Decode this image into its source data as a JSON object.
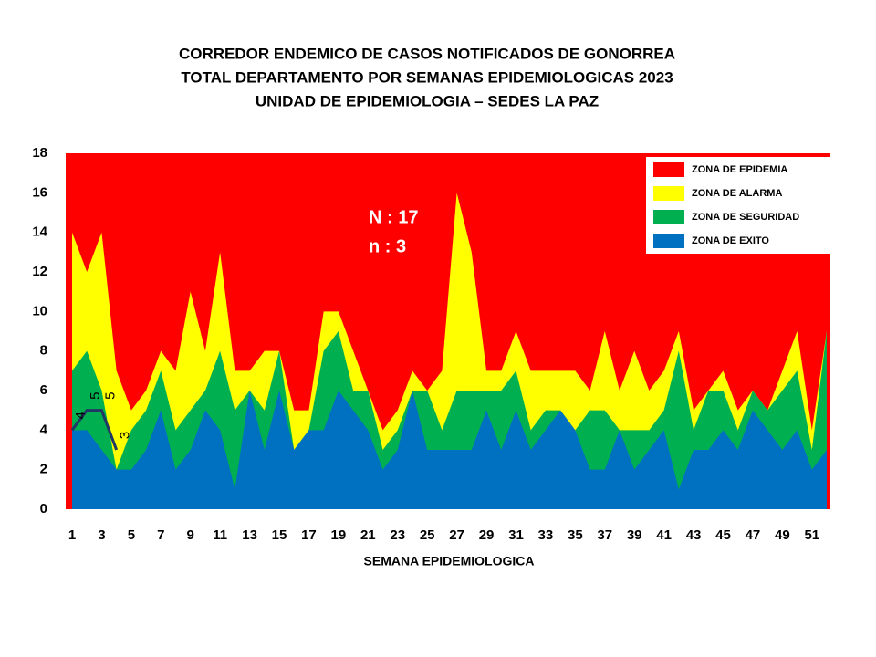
{
  "chart_data": {
    "type": "stacked_area",
    "title": [
      "CORREDOR ENDEMICO  DE CASOS NOTIFICADOS  DE GONORREA",
      "TOTAL DEPARTAMENTO  POR SEMANAS EPIDEMIOLOGICAS  2023",
      "UNIDAD  DE EPIDEMIOLOGIA  – SEDES LA PAZ"
    ],
    "x_label": "SEMANA EPIDEMIOLOGICA",
    "annotations": [
      "N : 17",
      "n : 3"
    ],
    "categories": [
      "1",
      null,
      "3",
      null,
      "5",
      null,
      "7",
      null,
      "9",
      null,
      "11",
      null,
      "13",
      null,
      "15",
      null,
      "17",
      null,
      "19",
      null,
      "21",
      null,
      "23",
      null,
      "25",
      null,
      "27",
      null,
      "29",
      null,
      "31",
      null,
      "33",
      null,
      "35",
      null,
      "37",
      null,
      "39",
      null,
      "41",
      null,
      "43",
      null,
      "45",
      null,
      "47",
      null,
      "49",
      null,
      "51",
      null
    ],
    "series": [
      {
        "name": "ZONA DE  EXITO",
        "color": "#0070c0",
        "values": [
          4,
          4,
          3,
          2,
          2,
          3,
          5,
          2,
          3,
          5,
          4,
          1,
          6,
          3,
          6,
          3,
          4,
          4,
          6,
          5,
          4,
          2,
          3,
          6,
          3,
          3,
          3,
          3,
          5,
          3,
          5,
          3,
          4,
          5,
          4,
          2,
          2,
          4,
          2,
          3,
          4,
          1,
          3,
          3,
          4,
          3,
          5,
          4,
          3,
          4,
          2,
          3
        ]
      },
      {
        "name": "ZONA DE  SEGURIDAD",
        "color": "#00b050",
        "values": [
          3,
          4,
          3,
          0,
          2,
          2,
          2,
          2,
          2,
          1,
          4,
          4,
          0,
          2,
          2,
          0,
          0,
          4,
          3,
          1,
          2,
          1,
          1,
          0,
          3,
          1,
          3,
          3,
          1,
          3,
          2,
          1,
          1,
          0,
          0,
          3,
          3,
          0,
          2,
          1,
          1,
          7,
          1,
          3,
          2,
          1,
          1,
          1,
          3,
          3,
          1,
          6
        ]
      },
      {
        "name": "ZONA DE ALARMA",
        "color": "#ffff00",
        "values": [
          7,
          4,
          8,
          5,
          1,
          1,
          1,
          3,
          6,
          2,
          5,
          2,
          1,
          3,
          0,
          2,
          1,
          2,
          1,
          2,
          0,
          1,
          1,
          1,
          0,
          3,
          10,
          7,
          1,
          1,
          2,
          3,
          2,
          2,
          3,
          1,
          4,
          2,
          4,
          2,
          2,
          1,
          1,
          0,
          1,
          1,
          0,
          0,
          1,
          2,
          1,
          0
        ]
      },
      {
        "name": "ZONA DE EPIDEMIA",
        "color": "#ff0000"
      }
    ],
    "cases": {
      "color": "#1f3864",
      "values": [
        4,
        5,
        5,
        3
      ]
    },
    "ylim": [
      0,
      18
    ],
    "yticks": [
      0,
      2,
      4,
      6,
      8,
      10,
      12,
      14,
      16,
      18
    ]
  }
}
